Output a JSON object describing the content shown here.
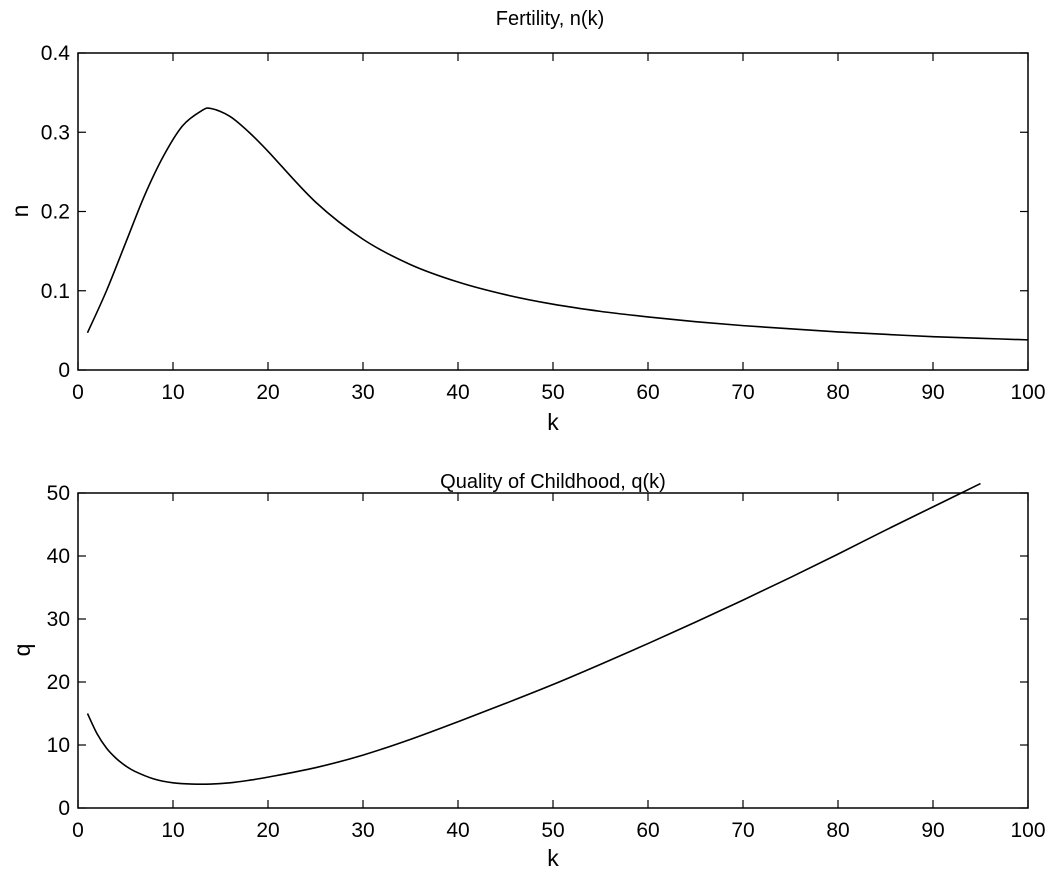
{
  "chart_data": [
    {
      "type": "line",
      "title": "Fertility, n(k)",
      "xlabel": "k",
      "ylabel": "n",
      "xlim": [
        0,
        100
      ],
      "ylim": [
        0,
        0.4
      ],
      "xticks": [
        "0",
        "10",
        "20",
        "30",
        "40",
        "50",
        "60",
        "70",
        "80",
        "90",
        "100"
      ],
      "yticks": [
        "0",
        "0.1",
        "0.2",
        "0.3",
        "0.4"
      ],
      "grid": false,
      "color": "#000000",
      "series": [
        {
          "x": [
            1,
            3,
            5,
            7,
            9,
            11,
            13,
            14,
            16,
            18,
            20,
            25,
            30,
            35,
            40,
            45,
            50,
            55,
            60,
            65,
            70,
            75,
            80,
            85,
            90,
            95,
            100
          ],
          "values": [
            0.047,
            0.1,
            0.16,
            0.22,
            0.27,
            0.308,
            0.327,
            0.33,
            0.32,
            0.3,
            0.276,
            0.212,
            0.165,
            0.133,
            0.111,
            0.095,
            0.083,
            0.074,
            0.067,
            0.061,
            0.056,
            0.052,
            0.048,
            0.045,
            0.042,
            0.04,
            0.038
          ]
        }
      ]
    },
    {
      "type": "line",
      "title": "Quality of Childhood, q(k)",
      "xlabel": "k",
      "ylabel": "q",
      "xlim": [
        0,
        100
      ],
      "ylim": [
        0,
        50
      ],
      "xticks": [
        "0",
        "10",
        "20",
        "30",
        "40",
        "50",
        "60",
        "70",
        "80",
        "90",
        "100"
      ],
      "yticks": [
        "0",
        "10",
        "20",
        "30",
        "40",
        "50"
      ],
      "grid": false,
      "color": "#000000",
      "series": [
        {
          "x": [
            1,
            2,
            3,
            4,
            5,
            6,
            8,
            10,
            12,
            14,
            16,
            18,
            20,
            25,
            30,
            35,
            40,
            45,
            50,
            55,
            60,
            65,
            70,
            75,
            80,
            85,
            90,
            95
          ],
          "values": [
            15,
            11.8,
            9.5,
            7.9,
            6.7,
            5.8,
            4.6,
            4.0,
            3.8,
            3.8,
            4.0,
            4.4,
            4.9,
            6.4,
            8.4,
            10.9,
            13.7,
            16.6,
            19.6,
            22.8,
            26.1,
            29.5,
            33.0,
            36.6,
            40.3,
            44.1,
            47.8,
            51.5
          ]
        }
      ]
    }
  ]
}
